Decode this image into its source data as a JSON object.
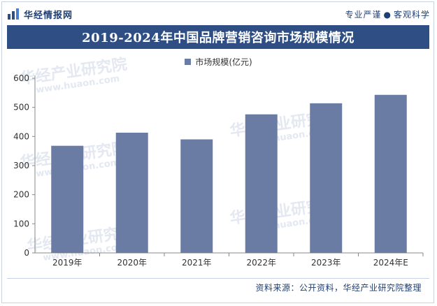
{
  "header": {
    "brand_name": "华经情报网",
    "slogan_left": "专业严谨",
    "slogan_right": "客观科学",
    "logo_icon": "bar-chart-logo-icon"
  },
  "watermark": {
    "text": "华经产业研究院",
    "sub": "www.huaon.com"
  },
  "footer": {
    "source": "资料来源：公开资料，华经产业研究院整理"
  },
  "colors": {
    "accent": "#2e4e84",
    "bar": "#6a7ca4",
    "brand_text": "#1f3f74"
  },
  "chart_data": {
    "type": "bar",
    "title": "2019-2024年中国品牌营销咨询市场规模情况",
    "categories": [
      "2019年",
      "2020年",
      "2021年",
      "2022年",
      "2023年",
      "2024年E"
    ],
    "series": [
      {
        "name": "市场规模(亿元)",
        "values": [
          368,
          413,
          390,
          476,
          514,
          543
        ]
      }
    ],
    "ylim": [
      0,
      600
    ],
    "yticks": [
      0,
      100,
      200,
      300,
      400,
      500,
      600
    ],
    "xlabel": "",
    "ylabel": "",
    "legend_position": "top-center",
    "grid": false
  }
}
